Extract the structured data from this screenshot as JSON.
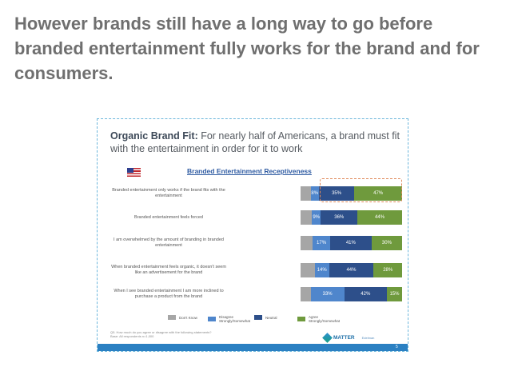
{
  "headline": "However brands still have a long way to go before branded entertainment fully works for the brand and for consumers.",
  "slide": {
    "title_bold": "Organic Brand Fit:",
    "title_rest": " For nearly half of Americans, a brand must fit with the entertainment in order for it to work",
    "flag_icon": "us-flag-icon",
    "footnote": "Q5. How much do you agree or disagree with the following statements?\nBase: All respondents n=1,000",
    "logo_text": "MATTER",
    "logo_sub": "Edelman",
    "page_number": "5"
  },
  "colors": {
    "dont_know": "#a6a6a6",
    "disagree": "#4f86cc",
    "neutral": "#2d4f8a",
    "agree": "#6f9a3d",
    "highlight": "#e08a5a"
  },
  "chart_data": {
    "type": "bar",
    "orientation": "horizontal-stacked",
    "title": "Branded Entertainment Receptiveness",
    "categories": [
      "Branded entertainment only works if the brand fits with the entertainment",
      "Branded entertainment feels forced",
      "I am overwhelmed by the amount of branding in branded entertainment",
      "When branded entertainment feels organic, it doesn't seem like an advertisement for the brand",
      "When I see branded entertainment I am more inclined to purchase a product from the brand"
    ],
    "series": [
      {
        "name": "Don't Know",
        "values": [
          null,
          null,
          null,
          null,
          null
        ]
      },
      {
        "name": "Disagree (Strongly/Somewhat)",
        "values": [
          8,
          9,
          17,
          14,
          33
        ]
      },
      {
        "name": "Neutral",
        "values": [
          35,
          36,
          41,
          44,
          42
        ]
      },
      {
        "name": "Agree (Strongly/Somewhat)",
        "values": [
          47,
          44,
          30,
          28,
          15
        ]
      }
    ],
    "value_labels": [
      [
        "8%",
        "35%",
        "47%"
      ],
      [
        "9%",
        "36%",
        "44%"
      ],
      [
        "17%",
        "41%",
        "30%"
      ],
      [
        "14%",
        "44%",
        "28%"
      ],
      [
        "33%",
        "42%",
        "15%"
      ]
    ],
    "legend": [
      {
        "label": "Don't Know",
        "sub": ""
      },
      {
        "label": "Disagree",
        "sub": "Strongly/Somewhat"
      },
      {
        "label": "Neutral",
        "sub": ""
      },
      {
        "label": "Agree",
        "sub": "Strongly/Somewhat"
      }
    ],
    "legend_position": "bottom",
    "highlight": {
      "row": 0,
      "series": "Agree (Strongly/Somewhat)"
    }
  }
}
